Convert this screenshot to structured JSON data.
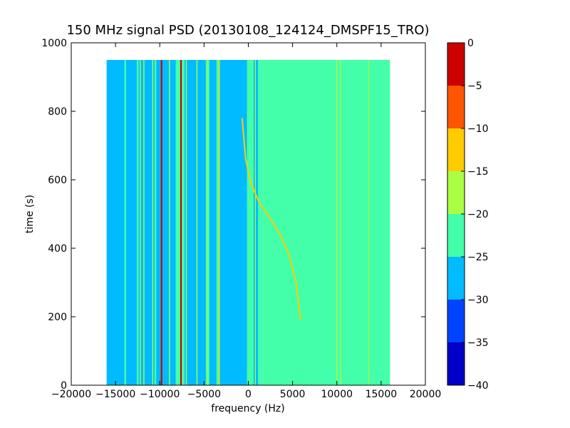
{
  "chart_data": {
    "type": "heatmap",
    "title": "150 MHz signal PSD (20130108_124124_DMSPF15_TRO)",
    "xlabel": "frequency (Hz)",
    "ylabel": "time (s)",
    "xlim": [
      -20000,
      20000
    ],
    "ylim": [
      0,
      1000
    ],
    "xticks": [
      -20000,
      -15000,
      -10000,
      -5000,
      0,
      5000,
      10000,
      15000,
      20000
    ],
    "xtick_labels": [
      "−20000",
      "−15000",
      "−10000",
      "−5000",
      "0",
      "5000",
      "10000",
      "15000",
      "20000"
    ],
    "yticks": [
      0,
      200,
      400,
      600,
      800,
      1000
    ],
    "ytick_labels": [
      "0",
      "200",
      "400",
      "600",
      "800",
      "1000"
    ],
    "data_extent": {
      "x": [
        -16000,
        16000
      ],
      "y": [
        0,
        950
      ]
    },
    "background_level": -22.5,
    "colorbar": {
      "levels": [
        -40,
        -35,
        -30,
        -25,
        -20,
        -15,
        -10,
        -5,
        0
      ],
      "tick_labels": [
        "−40",
        "−35",
        "−30",
        "−25",
        "−20",
        "−15",
        "−10",
        "−5",
        "0"
      ],
      "colors": [
        "#0000c8",
        "#0044ff",
        "#00bbff",
        "#44ffaa",
        "#aaff44",
        "#ffcc00",
        "#ff5500",
        "#cc0000"
      ]
    },
    "low_power_bands": [
      {
        "x": [
          -16000,
          -14000
        ],
        "level": -27.5
      },
      {
        "x": [
          -13800,
          -12600
        ],
        "level": -27.5
      },
      {
        "x": [
          -12400,
          -10600
        ],
        "level": -27.5
      },
      {
        "x": [
          -10400,
          -8200
        ],
        "level": -27.5
      },
      {
        "x": [
          -7200,
          -4800
        ],
        "level": -27.5
      },
      {
        "x": [
          -4400,
          -3600
        ],
        "level": -27.5
      },
      {
        "x": [
          -3200,
          -150
        ],
        "level": -27.5
      },
      {
        "x": [
          600,
          1100
        ],
        "level": -27.5
      }
    ],
    "lines": [
      {
        "x": -9800,
        "y": [
          0,
          950
        ],
        "level": -2.5
      },
      {
        "x": -7600,
        "y": [
          0,
          950
        ],
        "level": -2.5
      },
      {
        "x": -12200,
        "y": [
          0,
          950
        ],
        "level": -17.5
      },
      {
        "x": -11800,
        "y": [
          0,
          950
        ],
        "level": -17.5
      },
      {
        "x": -10800,
        "y": [
          0,
          950
        ],
        "level": -17.5
      },
      {
        "x": -8900,
        "y": [
          0,
          950
        ],
        "level": -17.5
      },
      {
        "x": -7000,
        "y": [
          0,
          950
        ],
        "level": -17.5
      },
      {
        "x": -5800,
        "y": [
          0,
          950
        ],
        "level": -17.5
      },
      {
        "x": -4600,
        "y": [
          0,
          950
        ],
        "level": -17.5
      },
      {
        "x": -3300,
        "y": [
          0,
          950
        ],
        "level": -12.5
      },
      {
        "x": 800,
        "y": [
          0,
          950
        ],
        "level": -17.5
      },
      {
        "x": 10000,
        "y": [
          0,
          950
        ],
        "level": -17.5
      },
      {
        "x": 10400,
        "y": [
          0,
          950
        ],
        "level": -17.5
      },
      {
        "x": 13600,
        "y": [
          0,
          950
        ],
        "level": -17.5
      }
    ],
    "doppler_curve": {
      "level": -12.5,
      "points": [
        {
          "x": -700,
          "y": 780
        },
        {
          "x": -300,
          "y": 660
        },
        {
          "x": 300,
          "y": 590
        },
        {
          "x": 1200,
          "y": 535
        },
        {
          "x": 2400,
          "y": 490
        },
        {
          "x": 3600,
          "y": 440
        },
        {
          "x": 4600,
          "y": 380
        },
        {
          "x": 5400,
          "y": 300
        },
        {
          "x": 5900,
          "y": 190
        }
      ]
    }
  }
}
